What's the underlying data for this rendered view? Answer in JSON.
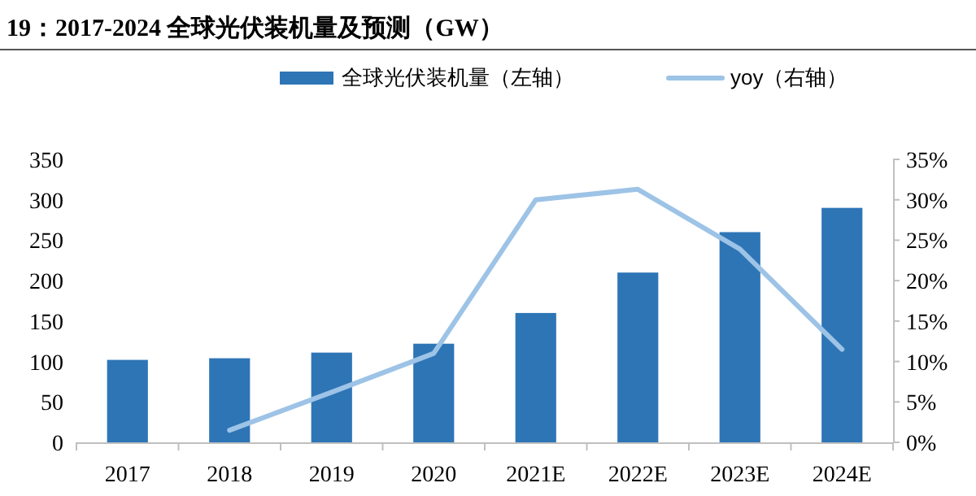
{
  "chart_data": {
    "type": "bar",
    "title": "19：2017-2024 全球光伏装机量及预测（GW）",
    "categories": [
      "2017",
      "2018",
      "2019",
      "2020",
      "2021E",
      "2022E",
      "2023E",
      "2024E"
    ],
    "series": [
      {
        "name": "全球光伏装机量（左轴）",
        "color": "#2e75b6",
        "values": [
          102,
          104,
          111,
          122,
          160,
          210,
          260,
          290
        ]
      },
      {
        "name": "yoy（右轴）",
        "type": "line",
        "axis": "y2",
        "color": "#9dc3e6",
        "values": [
          null,
          1.5,
          6.2,
          11.0,
          30.0,
          31.3,
          23.9,
          11.5
        ]
      }
    ],
    "ylim": [
      0,
      350
    ],
    "yticks": [
      0,
      50,
      100,
      150,
      200,
      250,
      300,
      350
    ],
    "y2lim": [
      0,
      35
    ],
    "y2ticks": [
      {
        "value": 0,
        "label": "0%"
      },
      {
        "value": 5,
        "label": "5%"
      },
      {
        "value": 10,
        "label": "10%"
      },
      {
        "value": 15,
        "label": "15%"
      },
      {
        "value": 20,
        "label": "20%"
      },
      {
        "value": 25,
        "label": "25%"
      },
      {
        "value": 30,
        "label": "30%"
      },
      {
        "value": 35,
        "label": "35%"
      }
    ],
    "legend": "top",
    "marker": "none"
  }
}
